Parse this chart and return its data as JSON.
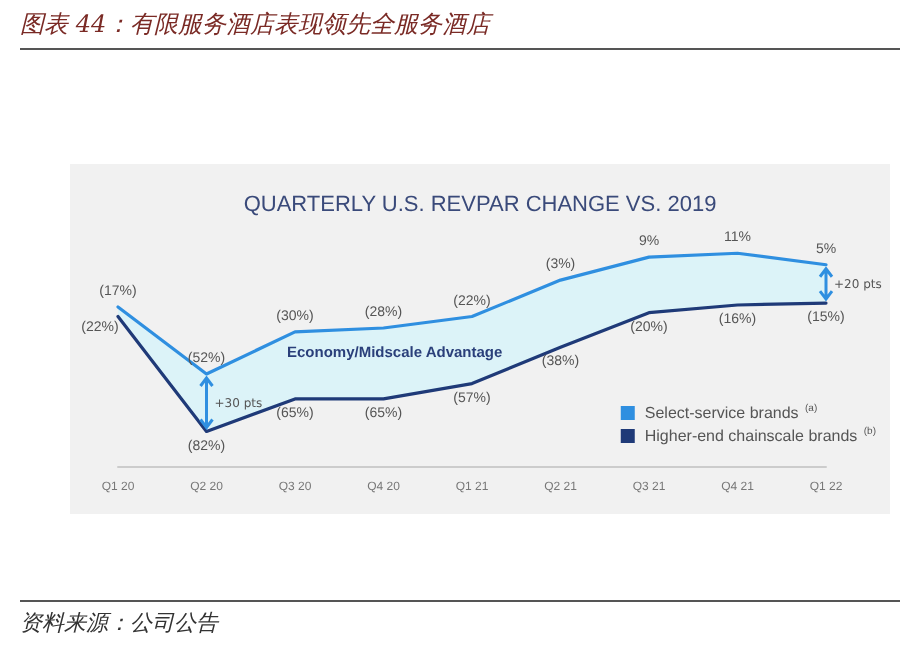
{
  "chart_data": {
    "type": "line",
    "title": "QUARTERLY U.S. REVPAR CHANGE VS. 2019",
    "subtitle": "图表 44：有限服务酒店表现领先全服务酒店",
    "categories": [
      "Q1 20",
      "Q2 20",
      "Q3 20",
      "Q4 20",
      "Q1 21",
      "Q2 21",
      "Q3 21",
      "Q4 21",
      "Q1 22"
    ],
    "series": [
      {
        "name": "Select-service brands $^{(a)}$",
        "color": "#2f8fe0",
        "values": [
          -17,
          -52,
          -30,
          -28,
          -22,
          -3,
          9,
          11,
          5
        ],
        "value_labels": [
          "(17%)",
          "(52%)",
          "(30%)",
          "(28%)",
          "(22%)",
          "(3%)",
          "9%",
          "11%",
          "5%"
        ],
        "lower": [
          -22,
          -82,
          -65,
          -65,
          -57,
          -38,
          -20,
          -16,
          -15
        ],
        "upper": [
          -17,
          -52,
          -30,
          -28,
          -22,
          -3,
          9,
          11,
          5
        ]
      },
      {
        "name": "Higher-end chainscale brands $^{(b)}$",
        "color": "#1f3a78",
        "values": [
          -22,
          -82,
          -65,
          -65,
          -57,
          -38,
          -20,
          -16,
          -15
        ],
        "value_labels": [
          "(22%)",
          "(82%)",
          "(65%)",
          "(65%)",
          "(57%)",
          "(38%)",
          "(20%)",
          "(16%)",
          "(15%)"
        ]
      }
    ],
    "annotations": [
      "Economy/Midscale Advantage",
      "+30 pts",
      "+20 pts",
      "资料来源：公司公告"
    ],
    "legend": "bottom right",
    "grid": false,
    "marker": "none",
    "line_style": "solid"
  }
}
